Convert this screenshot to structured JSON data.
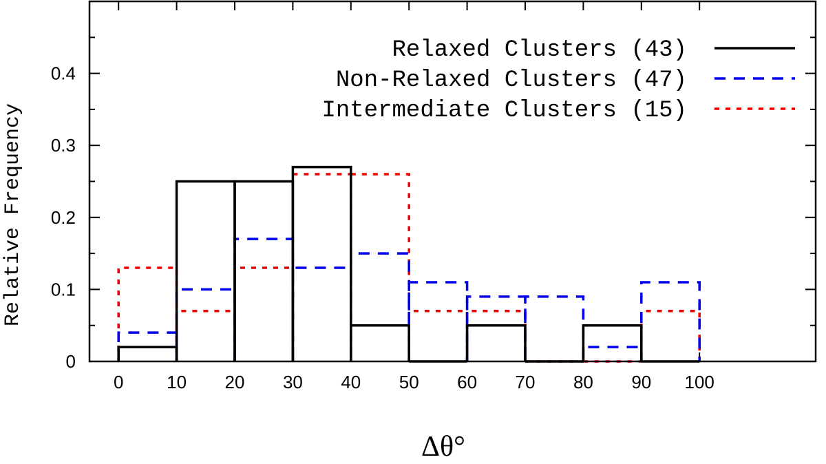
{
  "chart_data": {
    "type": "histogram",
    "xlabel": "Δθ°",
    "ylabel": "Relative Frequency",
    "xlim": [
      -5,
      120
    ],
    "ylim": [
      0,
      0.5
    ],
    "x_ticks": [
      0,
      10,
      20,
      30,
      40,
      50,
      60,
      70,
      80,
      90,
      100
    ],
    "y_ticks": [
      0,
      0.1,
      0.2,
      0.3,
      0.4
    ],
    "y_tick_labels": [
      "0",
      "0.1",
      "0.2",
      "0.3",
      "0.4"
    ],
    "bin_edges": [
      0,
      10,
      20,
      30,
      40,
      50,
      60,
      70,
      80,
      90,
      100
    ],
    "legend_position": "top-right",
    "series": [
      {
        "name": "Relaxed Clusters (43)",
        "style": "solid",
        "color": "#000000",
        "values": [
          0.02,
          0.25,
          0.25,
          0.27,
          0.05,
          0.0,
          0.05,
          0.0,
          0.05,
          0.0
        ]
      },
      {
        "name": "Non-Relaxed Clusters (47)",
        "style": "dashed",
        "color": "#0000ee",
        "values": [
          0.04,
          0.1,
          0.17,
          0.13,
          0.15,
          0.11,
          0.09,
          0.09,
          0.02,
          0.11
        ]
      },
      {
        "name": "Intermediate Clusters (15)",
        "style": "dotted",
        "color": "#ee0000",
        "values": [
          0.13,
          0.07,
          0.13,
          0.26,
          0.26,
          0.07,
          0.07,
          0.0,
          0.0,
          0.07
        ]
      }
    ]
  }
}
